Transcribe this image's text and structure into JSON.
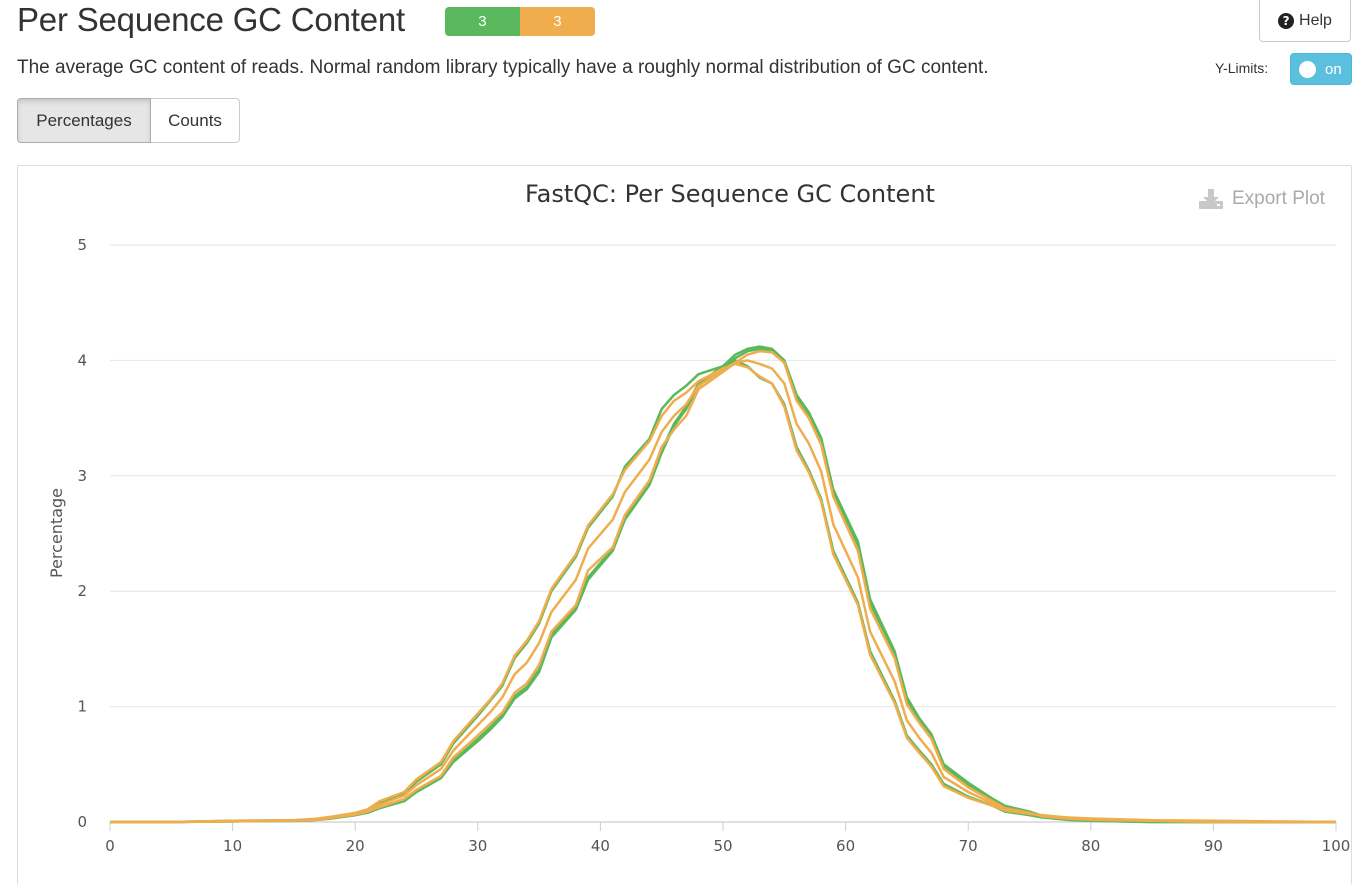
{
  "header": {
    "title": "Per Sequence GC Content",
    "badges": [
      {
        "count": "3",
        "color": "#5cb85c"
      },
      {
        "count": "3",
        "color": "#f0ad4e"
      }
    ],
    "help_label": "Help"
  },
  "description": "The average GC content of reads. Normal random library typically have a roughly normal distribution of GC content.",
  "ylimits": {
    "label": "Y-Limits:",
    "state": "on"
  },
  "toggle_buttons": {
    "percentages": "Percentages",
    "counts": "Counts",
    "active": "Percentages"
  },
  "export_label": "Export Plot",
  "chart_data": {
    "type": "line",
    "title": "FastQC: Per Sequence GC Content",
    "xlabel": "",
    "ylabel": "Percentage",
    "xlim": [
      0,
      100
    ],
    "ylim": [
      0,
      5
    ],
    "xticks": [
      0,
      10,
      20,
      30,
      40,
      50,
      60,
      70,
      80,
      90,
      100
    ],
    "yticks": [
      0,
      1,
      2,
      3,
      4,
      5
    ],
    "grid": true,
    "colors": {
      "pass": "#5cb85c",
      "warn": "#f0ad4e"
    },
    "series": [
      {
        "color": "#5cb85c",
        "x": [
          0,
          5,
          10,
          15,
          17,
          18,
          20,
          21,
          22,
          24,
          25,
          27,
          28,
          30,
          31,
          32,
          33,
          34,
          35,
          36,
          38,
          39,
          41,
          42,
          44,
          45,
          46,
          47,
          48,
          50,
          51,
          52,
          53,
          54,
          55,
          56,
          57,
          58,
          59,
          61,
          62,
          64,
          65,
          66,
          67,
          68,
          70,
          72,
          73,
          75,
          76,
          78,
          80,
          85,
          90,
          95,
          100
        ],
        "y": [
          0,
          0,
          0.005,
          0.01,
          0.02,
          0.03,
          0.06,
          0.08,
          0.12,
          0.18,
          0.26,
          0.38,
          0.52,
          0.7,
          0.8,
          0.91,
          1.07,
          1.15,
          1.3,
          1.6,
          1.84,
          2.1,
          2.35,
          2.62,
          2.92,
          3.2,
          3.43,
          3.58,
          3.78,
          3.93,
          4.02,
          4.08,
          4.1,
          4.08,
          3.98,
          3.68,
          3.52,
          3.3,
          2.85,
          2.4,
          1.9,
          1.45,
          1.05,
          0.88,
          0.74,
          0.48,
          0.32,
          0.19,
          0.13,
          0.08,
          0.05,
          0.02,
          0.01,
          0,
          0,
          0,
          0
        ]
      },
      {
        "color": "#5cb85c",
        "x": [
          0,
          5,
          10,
          15,
          17,
          18,
          20,
          21,
          22,
          24,
          25,
          27,
          28,
          30,
          31,
          32,
          33,
          34,
          35,
          36,
          38,
          39,
          41,
          42,
          44,
          45,
          46,
          47,
          48,
          50,
          51,
          52,
          53,
          54,
          55,
          56,
          57,
          58,
          59,
          61,
          62,
          64,
          65,
          66,
          67,
          68,
          70,
          72,
          73,
          75,
          76,
          78,
          80,
          85,
          90,
          95,
          100
        ],
        "y": [
          0,
          0,
          0.01,
          0.015,
          0.025,
          0.04,
          0.07,
          0.1,
          0.16,
          0.24,
          0.35,
          0.5,
          0.68,
          0.92,
          1.05,
          1.18,
          1.42,
          1.55,
          1.72,
          2.0,
          2.3,
          2.55,
          2.82,
          3.08,
          3.32,
          3.58,
          3.7,
          3.78,
          3.88,
          3.95,
          4.0,
          3.95,
          3.85,
          3.8,
          3.62,
          3.25,
          3.05,
          2.8,
          2.35,
          1.9,
          1.48,
          1.05,
          0.75,
          0.62,
          0.5,
          0.33,
          0.22,
          0.14,
          0.09,
          0.06,
          0.04,
          0.02,
          0.01,
          0,
          0,
          0,
          0
        ]
      },
      {
        "color": "#5cb85c",
        "x": [
          0,
          5,
          10,
          15,
          17,
          18,
          20,
          21,
          22,
          24,
          25,
          27,
          28,
          30,
          31,
          32,
          33,
          34,
          35,
          36,
          38,
          39,
          41,
          42,
          44,
          45,
          46,
          47,
          48,
          50,
          51,
          52,
          53,
          54,
          55,
          56,
          57,
          58,
          59,
          61,
          62,
          64,
          65,
          66,
          67,
          68,
          70,
          72,
          73,
          75,
          76,
          78,
          80,
          85,
          90,
          95,
          100
        ],
        "y": [
          0,
          0,
          0.005,
          0.01,
          0.02,
          0.03,
          0.06,
          0.085,
          0.125,
          0.19,
          0.27,
          0.39,
          0.53,
          0.72,
          0.82,
          0.93,
          1.09,
          1.17,
          1.32,
          1.62,
          1.86,
          2.12,
          2.37,
          2.64,
          2.94,
          3.22,
          3.45,
          3.6,
          3.8,
          3.95,
          4.05,
          4.1,
          4.12,
          4.1,
          4.0,
          3.7,
          3.55,
          3.33,
          2.88,
          2.43,
          1.93,
          1.48,
          1.08,
          0.9,
          0.76,
          0.5,
          0.34,
          0.2,
          0.14,
          0.09,
          0.055,
          0.025,
          0.012,
          0.004,
          0,
          0,
          0
        ]
      },
      {
        "color": "#f0ad4e",
        "x": [
          0,
          5,
          10,
          15,
          17,
          18,
          20,
          21,
          22,
          24,
          25,
          27,
          28,
          30,
          31,
          32,
          33,
          34,
          35,
          36,
          38,
          39,
          41,
          42,
          44,
          45,
          46,
          47,
          48,
          50,
          51,
          52,
          53,
          54,
          55,
          56,
          57,
          58,
          59,
          61,
          62,
          64,
          65,
          66,
          67,
          68,
          70,
          72,
          73,
          75,
          76,
          78,
          80,
          85,
          90,
          95,
          100
        ],
        "y": [
          0,
          0,
          0.005,
          0.012,
          0.022,
          0.035,
          0.065,
          0.09,
          0.13,
          0.2,
          0.28,
          0.4,
          0.56,
          0.75,
          0.85,
          0.95,
          1.12,
          1.2,
          1.36,
          1.65,
          1.88,
          2.18,
          2.38,
          2.66,
          2.96,
          3.25,
          3.4,
          3.52,
          3.75,
          3.9,
          3.98,
          4.05,
          4.08,
          4.07,
          3.98,
          3.65,
          3.5,
          3.27,
          2.82,
          2.35,
          1.85,
          1.42,
          1.02,
          0.86,
          0.72,
          0.46,
          0.3,
          0.18,
          0.12,
          0.08,
          0.05,
          0.03,
          0.02,
          0.01,
          0,
          0,
          0
        ]
      },
      {
        "color": "#f0ad4e",
        "x": [
          0,
          5,
          10,
          15,
          17,
          18,
          20,
          21,
          22,
          24,
          25,
          27,
          28,
          30,
          31,
          32,
          33,
          34,
          35,
          36,
          38,
          39,
          41,
          42,
          44,
          45,
          46,
          47,
          48,
          50,
          51,
          52,
          53,
          54,
          55,
          56,
          57,
          58,
          59,
          61,
          62,
          64,
          65,
          66,
          67,
          68,
          70,
          72,
          73,
          75,
          76,
          78,
          80,
          85,
          90,
          95,
          100
        ],
        "y": [
          0,
          0,
          0.01,
          0.015,
          0.03,
          0.045,
          0.08,
          0.11,
          0.18,
          0.26,
          0.37,
          0.52,
          0.7,
          0.94,
          1.06,
          1.2,
          1.44,
          1.57,
          1.74,
          2.02,
          2.32,
          2.57,
          2.84,
          3.05,
          3.3,
          3.52,
          3.65,
          3.72,
          3.82,
          3.93,
          3.97,
          3.94,
          3.86,
          3.8,
          3.6,
          3.22,
          3.03,
          2.78,
          2.32,
          1.88,
          1.45,
          1.03,
          0.73,
          0.6,
          0.48,
          0.31,
          0.21,
          0.14,
          0.1,
          0.07,
          0.06,
          0.04,
          0.03,
          0.015,
          0.01,
          0.005,
          0
        ]
      },
      {
        "color": "#f0ad4e",
        "x": [
          0,
          5,
          10,
          15,
          17,
          18,
          20,
          21,
          22,
          24,
          25,
          27,
          28,
          30,
          31,
          32,
          33,
          34,
          35,
          36,
          38,
          39,
          41,
          42,
          44,
          45,
          46,
          47,
          48,
          50,
          51,
          52,
          53,
          54,
          55,
          56,
          57,
          58,
          59,
          61,
          62,
          64,
          65,
          66,
          67,
          68,
          70,
          72,
          73,
          75,
          76,
          78,
          80,
          85,
          90,
          95,
          100
        ],
        "y": [
          0,
          0,
          0.008,
          0.014,
          0.026,
          0.04,
          0.072,
          0.1,
          0.15,
          0.23,
          0.32,
          0.46,
          0.62,
          0.84,
          0.95,
          1.08,
          1.28,
          1.38,
          1.55,
          1.82,
          2.1,
          2.37,
          2.62,
          2.86,
          3.14,
          3.38,
          3.52,
          3.62,
          3.78,
          3.92,
          3.98,
          4.0,
          3.97,
          3.93,
          3.8,
          3.45,
          3.28,
          3.04,
          2.58,
          2.12,
          1.65,
          1.22,
          0.88,
          0.73,
          0.6,
          0.39,
          0.26,
          0.16,
          0.11,
          0.075,
          0.055,
          0.035,
          0.025,
          0.012,
          0.005,
          0.002,
          0
        ]
      }
    ]
  }
}
